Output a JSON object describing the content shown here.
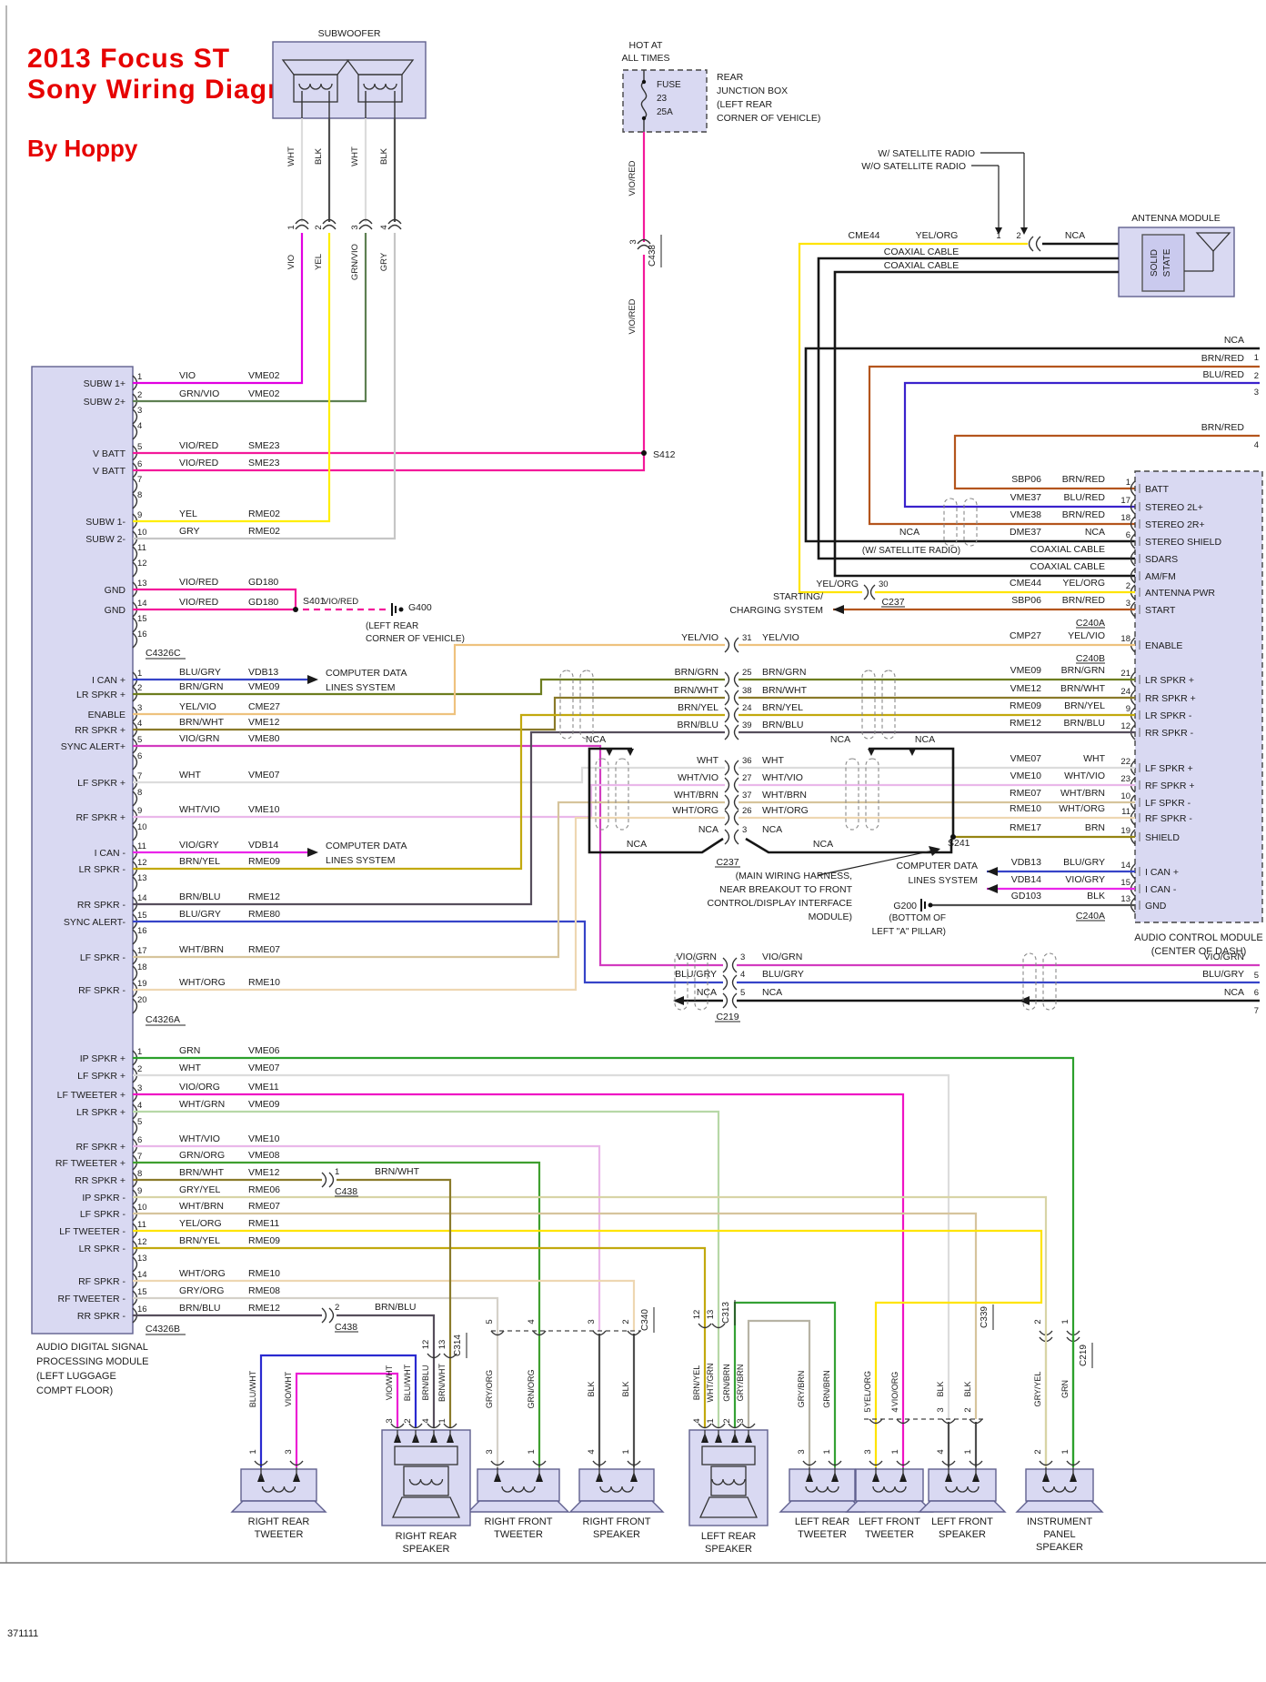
{
  "title": {
    "lines": [
      "2013 Focus ST",
      "Sony Wiring Diagram"
    ],
    "byline": "By Hoppy"
  },
  "page_id": "371111",
  "palette": {
    "box_fill": "#d9d9f2",
    "box_stroke": "#60608f",
    "text": "#1c1c1c",
    "title_red": "#e60000",
    "wire_black": "#161616"
  },
  "wire_colors": {
    "VIO": "#e100e1",
    "GRN/VIO": "#5e8052",
    "VIO/RED": "#f3199a",
    "YEL": "#ffee00",
    "GRY": "#c6c6c6",
    "BLU/GRY": "#3644c8",
    "BRN/GRN": "#6d7d1f",
    "YEL/VIO": "#eec27e",
    "BRN/WHT": "#8a7a2a",
    "VIO/GRN": "#d23bc0",
    "WHT": "#dcdcdc",
    "WHT/VIO": "#eab8ea",
    "VIO/GRY": "#ea25ea",
    "BRN/YEL": "#c2a90e",
    "BRN/BLU": "#564e5c",
    "WHT/BRN": "#d6c49c",
    "WHT/ORG": "#eed7b2",
    "GRN": "#2ca02c",
    "VIO/ORG": "#ef13c4",
    "WHT/GRN": "#b7d8a7",
    "GRN/ORG": "#3f9f2f",
    "GRY/YEL": "#d8d4a6",
    "YEL/ORG": "#ffe400",
    "GRY/ORG": "#d5d1c9",
    "GRY/BRN": "#b7b3a5",
    "GRN/BRN": "#35a135",
    "BLU/WHT": "#2a2ad0",
    "VIO/WHT": "#ec1fd4",
    "BLK": "#4f4f4f",
    "NCA": "#161616",
    "BRN/RED": "#b4551d",
    "BLU/RED": "#3a22cc",
    "BRN": "#958413"
  },
  "subwoofer": {
    "label": "SUBWOOFER",
    "pins": [
      {
        "pin": "1",
        "top": "WHT",
        "bottom": "VIO"
      },
      {
        "pin": "2",
        "top": "BLK",
        "bottom": "YEL"
      },
      {
        "pin": "3",
        "top": "WHT",
        "bottom": "GRN/VIO"
      },
      {
        "pin": "4",
        "top": "BLK",
        "bottom": "GRY"
      }
    ]
  },
  "fuse": {
    "hot": [
      "HOT AT",
      "ALL TIMES"
    ],
    "name": "FUSE",
    "number": "23",
    "amps": "25A",
    "box_note": [
      "REAR",
      "JUNCTION BOX",
      "(LEFT REAR",
      "CORNER OF VEHICLE)"
    ],
    "wire": "VIO/RED",
    "pin": "3",
    "connector": "C438"
  },
  "antenna": {
    "module": "ANTENNA MODULE",
    "inner": [
      "SOLID",
      "STATE"
    ],
    "w_sat": "W/ SATELLITE RADIO",
    "wo_sat": "W/O SATELLITE RADIO",
    "cme44": "CME44",
    "yel_org": "YEL/ORG",
    "pin1": "1",
    "pin2": "2",
    "coax": "COAXIAL CABLE",
    "sat_note": "(W/ SATELLITE RADIO)",
    "edge_rows": [
      {
        "color": "NCA",
        "pin": "1"
      },
      {
        "color": "BRN/RED",
        "pin": "2"
      },
      {
        "color": "BLU/RED",
        "pin": "3"
      },
      {
        "color": "BRN/RED",
        "pin": "4"
      }
    ]
  },
  "left_module": {
    "label": [
      "AUDIO DIGITAL SIGNAL",
      "PROCESSING MODULE",
      "(LEFT LUGGAGE",
      "COMPT FLOOR)"
    ],
    "groups": [
      {
        "connector": "C4326C",
        "pins": [
          {
            "pin": "1",
            "label": "SUBW 1+",
            "color": "VIO",
            "circuit": "VME02"
          },
          {
            "pin": "2",
            "label": "SUBW 2+",
            "color": "GRN/VIO",
            "circuit": "VME02"
          },
          {
            "pin": "3"
          },
          {
            "pin": "4"
          },
          {
            "pin": "5",
            "label": "V BATT",
            "color": "VIO/RED",
            "circuit": "SME23"
          },
          {
            "pin": "6",
            "label": "V BATT",
            "color": "VIO/RED",
            "circuit": "SME23"
          },
          {
            "pin": "7"
          },
          {
            "pin": "8"
          },
          {
            "pin": "9",
            "label": "SUBW 1-",
            "color": "YEL",
            "circuit": "RME02"
          },
          {
            "pin": "10",
            "label": "SUBW 2-",
            "color": "GRY",
            "circuit": "RME02"
          },
          {
            "pin": "11"
          },
          {
            "pin": "12"
          },
          {
            "pin": "13",
            "label": "GND",
            "color": "VIO/RED",
            "circuit": "GD180"
          },
          {
            "pin": "14",
            "label": "GND",
            "color": "VIO/RED",
            "circuit": "GD180"
          },
          {
            "pin": "15"
          },
          {
            "pin": "16"
          }
        ]
      },
      {
        "connector": "C4326A",
        "pins": [
          {
            "pin": "1",
            "label": "I CAN +",
            "color": "BLU/GRY",
            "circuit": "VDB13"
          },
          {
            "pin": "2",
            "label": "LR SPKR +",
            "color": "BRN/GRN",
            "circuit": "VME09"
          },
          {
            "pin": "3",
            "label": "ENABLE",
            "color": "YEL/VIO",
            "circuit": "CME27"
          },
          {
            "pin": "4",
            "label": "RR SPKR +",
            "color": "BRN/WHT",
            "circuit": "VME12"
          },
          {
            "pin": "5",
            "label": "SYNC ALERT+",
            "color": "VIO/GRN",
            "circuit": "VME80"
          },
          {
            "pin": "6"
          },
          {
            "pin": "7",
            "label": "LF SPKR +",
            "color": "WHT",
            "circuit": "VME07"
          },
          {
            "pin": "8"
          },
          {
            "pin": "9",
            "label": "RF SPKR +",
            "color": "WHT/VIO",
            "circuit": "VME10"
          },
          {
            "pin": "10"
          },
          {
            "pin": "11",
            "label": "I CAN -",
            "color": "VIO/GRY",
            "circuit": "VDB14"
          },
          {
            "pin": "12",
            "label": "LR SPKR -",
            "color": "BRN/YEL",
            "circuit": "RME09"
          },
          {
            "pin": "13"
          },
          {
            "pin": "14",
            "label": "RR SPKR -",
            "color": "BRN/BLU",
            "circuit": "RME12"
          },
          {
            "pin": "15",
            "label": "SYNC ALERT-",
            "color": "BLU/GRY",
            "circuit": "RME80"
          },
          {
            "pin": "16"
          },
          {
            "pin": "17",
            "label": "LF SPKR -",
            "color": "WHT/BRN",
            "circuit": "RME07"
          },
          {
            "pin": "18"
          },
          {
            "pin": "19",
            "label": "RF SPKR -",
            "color": "WHT/ORG",
            "circuit": "RME10"
          },
          {
            "pin": "20"
          }
        ]
      },
      {
        "connector": "C4326B",
        "pins": [
          {
            "pin": "1",
            "label": "IP SPKR +",
            "color": "GRN",
            "circuit": "VME06"
          },
          {
            "pin": "2",
            "label": "LF SPKR +",
            "color": "WHT",
            "circuit": "VME07"
          },
          {
            "pin": "3",
            "label": "LF TWEETER +",
            "color": "VIO/ORG",
            "circuit": "VME11"
          },
          {
            "pin": "4",
            "label": "LR SPKR +",
            "color": "WHT/GRN",
            "circuit": "VME09"
          },
          {
            "pin": "5"
          },
          {
            "pin": "6",
            "label": "RF SPKR +",
            "color": "WHT/VIO",
            "circuit": "VME10"
          },
          {
            "pin": "7",
            "label": "RF TWEETER +",
            "color": "GRN/ORG",
            "circuit": "VME08"
          },
          {
            "pin": "8",
            "label": "RR SPKR +",
            "color": "BRN/WHT",
            "circuit": "VME12"
          },
          {
            "pin": "9",
            "label": "IP SPKR -",
            "color": "GRY/YEL",
            "circuit": "RME06"
          },
          {
            "pin": "10",
            "label": "LF SPKR -",
            "color": "WHT/BRN",
            "circuit": "RME07"
          },
          {
            "pin": "11",
            "label": "LF TWEETER -",
            "color": "YEL/ORG",
            "circuit": "RME11"
          },
          {
            "pin": "12",
            "label": "LR SPKR -",
            "color": "BRN/YEL",
            "circuit": "RME09"
          },
          {
            "pin": "13"
          },
          {
            "pin": "14",
            "label": "RF SPKR -",
            "color": "WHT/ORG",
            "circuit": "RME10"
          },
          {
            "pin": "15",
            "label": "RF TWEETER -",
            "color": "GRY/ORG",
            "circuit": "RME08"
          },
          {
            "pin": "16",
            "label": "RR SPKR -",
            "color": "BRN/BLU",
            "circuit": "RME12"
          }
        ]
      }
    ]
  },
  "right_module": {
    "label": [
      "AUDIO CONTROL MODULE",
      "(CENTER OF DASH)"
    ],
    "connector_a": "C240A",
    "connector_b": "C240B",
    "rows": [
      {
        "label": "BATT",
        "pin": "1",
        "circuit": "SBP06",
        "color": "BRN/RED"
      },
      {
        "label": "STEREO 2L+",
        "pin": "17",
        "circuit": "VME37",
        "color": "BLU/RED"
      },
      {
        "label": "STEREO 2R+",
        "pin": "18",
        "circuit": "VME38",
        "color": "BRN/RED"
      },
      {
        "label": "STEREO SHIELD",
        "pin": "6",
        "circuit": "DME37",
        "color": "NCA"
      },
      {
        "label": "SDARS",
        "note": "COAXIAL CABLE"
      },
      {
        "label": "AM/FM",
        "note": "COAXIAL CABLE"
      },
      {
        "label": "ANTENNA PWR",
        "pin": "2",
        "circuit": "CME44",
        "color": "YEL/ORG"
      },
      {
        "label": "START",
        "pin": "3",
        "circuit": "SBP06",
        "color": "BRN/RED"
      },
      {
        "label": "ENABLE",
        "pin": "18",
        "circuit": "CMP27",
        "color": "YEL/VIO"
      },
      {
        "label": "LR SPKR +",
        "pin": "21",
        "circuit": "VME09",
        "color": "BRN/GRN"
      },
      {
        "label": "RR SPKR +",
        "pin": "24",
        "circuit": "VME12",
        "color": "BRN/WHT"
      },
      {
        "label": "LR SPKR -",
        "pin": "9",
        "circuit": "RME09",
        "color": "BRN/YEL"
      },
      {
        "label": "RR SPKR -",
        "pin": "12",
        "circuit": "RME12",
        "color": "BRN/BLU"
      },
      {
        "label": "LF SPKR +",
        "pin": "22",
        "circuit": "VME07",
        "color": "WHT"
      },
      {
        "label": "RF SPKR +",
        "pin": "23",
        "circuit": "VME10",
        "color": "WHT/VIO"
      },
      {
        "label": "LF SPKR -",
        "pin": "10",
        "circuit": "RME07",
        "color": "WHT/BRN"
      },
      {
        "label": "RF SPKR -",
        "pin": "11",
        "circuit": "RME10",
        "color": "WHT/ORG"
      },
      {
        "label": "SHIELD",
        "pin": "19",
        "circuit": "RME17",
        "color": "BRN"
      },
      {
        "label": "I CAN +",
        "pin": "14",
        "circuit": "VDB13",
        "color": "BLU/GRY"
      },
      {
        "label": "I CAN -",
        "pin": "15",
        "circuit": "VDB14",
        "color": "VIO/GRY"
      },
      {
        "label": "GND",
        "pin": "13",
        "circuit": "GD103",
        "color": "BLK"
      }
    ]
  },
  "c237": {
    "name": "C237",
    "note": [
      "(MAIN WIRING HARNESS,",
      "NEAR BREAKOUT TO FRONT",
      "CONTROL/DISPLAY INTERFACE",
      "MODULE)"
    ],
    "pin30": {
      "left": "YEL/ORG",
      "pin": "30"
    },
    "rows": [
      {
        "left": "YEL/VIO",
        "pin": "31",
        "right": "YEL/VIO"
      },
      {
        "left": "BRN/GRN",
        "pin": "25",
        "right": "BRN/GRN"
      },
      {
        "left": "BRN/WHT",
        "pin": "38",
        "right": "BRN/WHT"
      },
      {
        "left": "BRN/YEL",
        "pin": "24",
        "right": "BRN/YEL"
      },
      {
        "left": "BRN/BLU",
        "pin": "39",
        "right": "BRN/BLU"
      },
      {
        "left": "WHT",
        "pin": "36",
        "right": "WHT"
      },
      {
        "left": "WHT/VIO",
        "pin": "27",
        "right": "WHT/VIO"
      },
      {
        "left": "WHT/BRN",
        "pin": "37",
        "right": "WHT/BRN"
      },
      {
        "left": "WHT/ORG",
        "pin": "26",
        "right": "WHT/ORG"
      },
      {
        "left": "NCA",
        "pin": "3",
        "right": "NCA"
      }
    ]
  },
  "c219": {
    "name": "C219",
    "rows": [
      {
        "left": "VIO/GRN",
        "pin": "3",
        "right": "VIO/GRN",
        "edge_pin": "5"
      },
      {
        "left": "BLU/GRY",
        "pin": "4",
        "right": "BLU/GRY",
        "edge_pin": "6"
      },
      {
        "left": "NCA",
        "pin": "5",
        "right": "NCA",
        "edge_pin": "7"
      }
    ]
  },
  "inline_c438": {
    "name": "C438",
    "rows": [
      {
        "pin": "1",
        "color": "BRN/WHT"
      },
      {
        "pin": "2",
        "color": "BRN/BLU"
      }
    ]
  },
  "notes": {
    "starting": [
      "STARTING/",
      "CHARGING SYSTEM"
    ],
    "computer": [
      "COMPUTER DATA",
      "LINES SYSTEM"
    ],
    "s241": "S241",
    "s401": "S401",
    "s412": "S412",
    "nca": "NCA",
    "g400": {
      "name": "G400",
      "note": [
        "(LEFT REAR",
        "CORNER OF VEHICLE)"
      ]
    },
    "g200": {
      "name": "G200",
      "note": [
        "(BOTTOM OF",
        "LEFT \"A\" PILLAR)"
      ]
    }
  },
  "speakers": [
    {
      "name": [
        "RIGHT REAR",
        "TWEETER"
      ],
      "pins": [
        {
          "pin": "1",
          "color": "BLU/WHT"
        },
        {
          "pin": "3",
          "color": "VIO/WHT"
        }
      ]
    },
    {
      "name": [
        "RIGHT REAR",
        "SPEAKER"
      ],
      "pins": [
        {
          "pin": "3",
          "color": "VIO/WHT"
        },
        {
          "pin": "2",
          "color": "BLU/WHT"
        },
        {
          "pin": "4",
          "color": "BRN/BLU"
        },
        {
          "pin": "1",
          "color": "BRN/WHT"
        }
      ],
      "connector": {
        "name": "C314",
        "pins": [
          "12",
          "13"
        ]
      }
    },
    {
      "name": [
        "RIGHT FRONT",
        "TWEETER"
      ],
      "pins": [
        {
          "pin": "3",
          "color": "GRY/ORG"
        },
        {
          "pin": "1",
          "color": "GRN/ORG"
        }
      ],
      "connector": {
        "name": "C340",
        "pins": [
          "5",
          "4"
        ]
      }
    },
    {
      "name": [
        "RIGHT FRONT",
        "SPEAKER"
      ],
      "pins": [
        {
          "pin": "4",
          "color": "BLK"
        },
        {
          "pin": "1",
          "color": "BLK"
        }
      ],
      "connector": {
        "name": "C340",
        "pins": [
          "3",
          "2"
        ]
      }
    },
    {
      "name": [
        "LEFT REAR",
        "SPEAKER"
      ],
      "pins": [
        {
          "pin": "4",
          "color": "BRN/YEL"
        },
        {
          "pin": "1",
          "color": "WHT/GRN"
        },
        {
          "pin": "2",
          "color": "GRN/BRN"
        },
        {
          "pin": "3",
          "color": "GRY/BRN"
        }
      ],
      "connector": {
        "name": "C313",
        "pins": [
          "12",
          "13"
        ]
      }
    },
    {
      "name": [
        "LEFT REAR",
        "TWEETER"
      ],
      "pins": [
        {
          "pin": "3",
          "color": "GRY/BRN"
        },
        {
          "pin": "1",
          "color": "GRN/BRN"
        }
      ]
    },
    {
      "name": [
        "LEFT FRONT",
        "TWEETER"
      ],
      "pins": [
        {
          "pin": "3",
          "color": "YEL/ORG"
        },
        {
          "pin": "1",
          "color": "VIO/ORG"
        }
      ],
      "connector": {
        "name": "C339",
        "pins": [
          "5",
          "4"
        ]
      }
    },
    {
      "name": [
        "LEFT FRONT",
        "SPEAKER"
      ],
      "pins": [
        {
          "pin": "4",
          "color": "BLK"
        },
        {
          "pin": "1",
          "color": "BLK"
        }
      ],
      "connector": {
        "name": "C339",
        "pins": [
          "3",
          "2"
        ]
      }
    },
    {
      "name": [
        "INSTRUMENT",
        "PANEL",
        "SPEAKER"
      ],
      "pins": [
        {
          "pin": "2",
          "color": "GRY/YEL"
        },
        {
          "pin": "1",
          "color": "GRN"
        }
      ],
      "connector": {
        "name": "C219",
        "pins": [
          "2",
          "1"
        ]
      }
    }
  ]
}
